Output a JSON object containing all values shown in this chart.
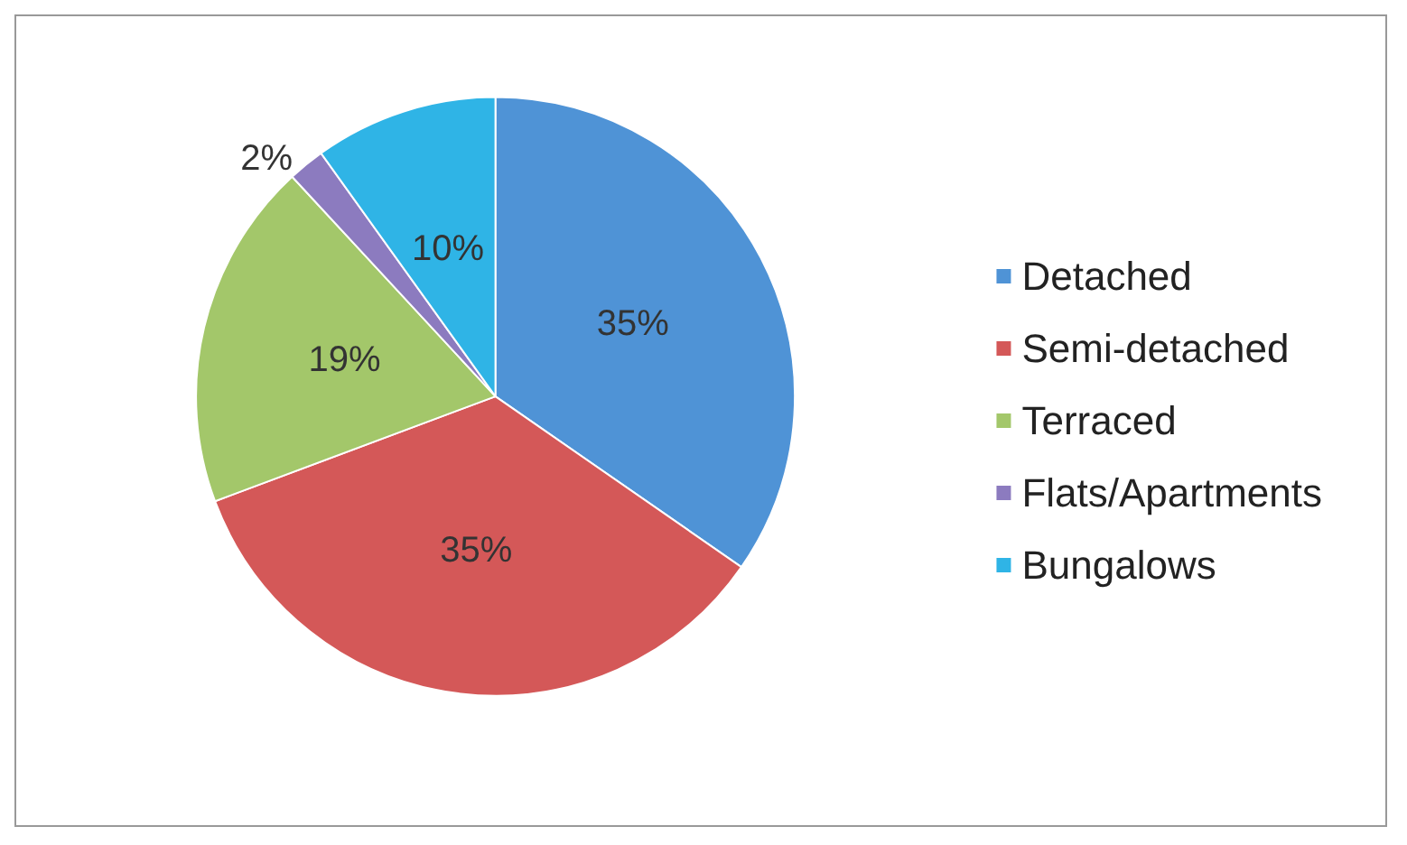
{
  "chart_data": {
    "type": "pie",
    "categories": [
      "Detached",
      "Semi-detached",
      "Terraced",
      "Flats/Apartments",
      "Bungalows"
    ],
    "values": [
      35,
      35,
      19,
      2,
      10
    ],
    "value_labels": [
      "35%",
      "35%",
      "19%",
      "2%",
      "10%"
    ],
    "colors": [
      "#4f93d6",
      "#d45858",
      "#a3c76a",
      "#8c7bbf",
      "#2fb4e6"
    ],
    "legend": "right"
  }
}
